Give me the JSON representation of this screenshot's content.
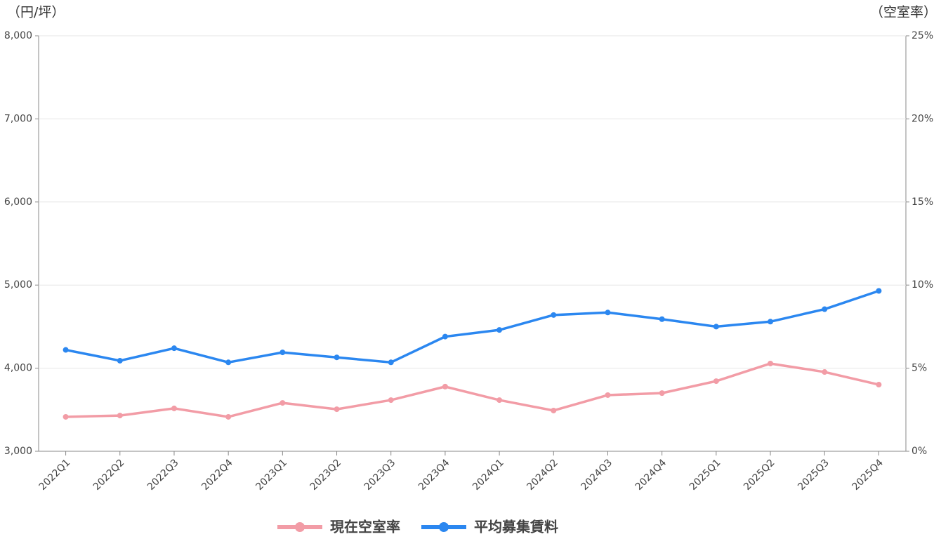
{
  "chart_data": {
    "type": "line",
    "y_label": "（円/坪）",
    "y2_label": "（空室率）",
    "categories": [
      "2022Q1",
      "2022Q2",
      "2022Q3",
      "2022Q4",
      "2023Q1",
      "2023Q2",
      "2023Q3",
      "2023Q4",
      "2024Q1",
      "2024Q2",
      "2024Q3",
      "2024Q4",
      "2025Q1",
      "2025Q2",
      "2025Q3",
      "2025Q4"
    ],
    "series": [
      {
        "name": "現在空室率",
        "color": "#f29ca6",
        "axis": "y2",
        "values": [
          2.07,
          2.15,
          2.58,
          2.07,
          2.91,
          2.53,
          3.08,
          3.89,
          3.08,
          2.45,
          3.38,
          3.5,
          4.22,
          5.28,
          4.77,
          4.01
        ]
      },
      {
        "name": "平均募集賃料",
        "color": "#2b87f0",
        "values": [
          4220,
          4090,
          4240,
          4070,
          4190,
          4130,
          4070,
          4380,
          4460,
          4640,
          4670,
          4590,
          4500,
          4560,
          4710,
          4930
        ]
      }
    ],
    "ylim": [
      3000,
      8000
    ],
    "yticks": [
      {
        "value": 3000,
        "label": "3,000"
      },
      {
        "value": 4000,
        "label": "4,000"
      },
      {
        "value": 5000,
        "label": "5,000"
      },
      {
        "value": 6000,
        "label": "6,000"
      },
      {
        "value": 7000,
        "label": "7,000"
      },
      {
        "value": 8000,
        "label": "8,000"
      }
    ],
    "y2lim": [
      0,
      25
    ],
    "y2ticks": [
      {
        "value": 0,
        "label": "0%"
      },
      {
        "value": 5,
        "label": "5%"
      },
      {
        "value": 10,
        "label": "10%"
      },
      {
        "value": 15,
        "label": "15%"
      },
      {
        "value": 20,
        "label": "20%"
      },
      {
        "value": 25,
        "label": "25%"
      }
    ],
    "grid": true,
    "legend": "bottom"
  }
}
